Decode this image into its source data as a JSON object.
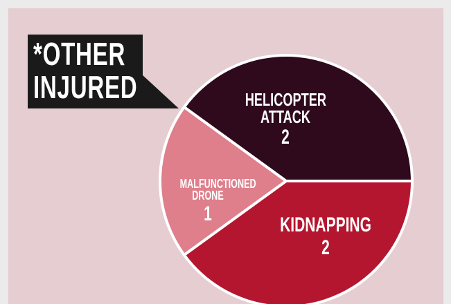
{
  "chart_data": {
    "type": "pie",
    "title": "*OTHER INJURED",
    "categories": [
      "HELICOPTER ATTACK",
      "KIDNAPPING",
      "MALFUNCTIONED DRONE"
    ],
    "values": [
      2,
      2,
      1
    ],
    "colors": [
      "#2e0a1c",
      "#b5162f",
      "#de7f8b"
    ]
  }
}
